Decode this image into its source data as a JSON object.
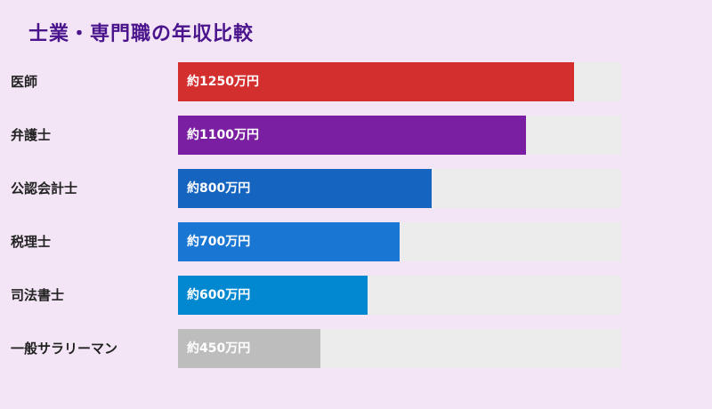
{
  "chart_data": {
    "type": "bar",
    "orientation": "horizontal",
    "title": "士業・専門職の年収比較",
    "categories": [
      "医師",
      "弁護士",
      "公認会計士",
      "税理士",
      "司法書士",
      "一般サラリーマン"
    ],
    "values": [
      1250,
      1100,
      800,
      700,
      600,
      450
    ],
    "unit": "万円",
    "value_labels": [
      "約1250万円",
      "約1100万円",
      "約800万円",
      "約700万円",
      "約600万円",
      "約450万円"
    ],
    "colors": [
      "#d32f2f",
      "#7b1fa2",
      "#1565c0",
      "#1976d2",
      "#0288d1",
      "#bdbdbd"
    ],
    "xlim": [
      0,
      1400
    ],
    "grid": false,
    "legend": "none"
  }
}
